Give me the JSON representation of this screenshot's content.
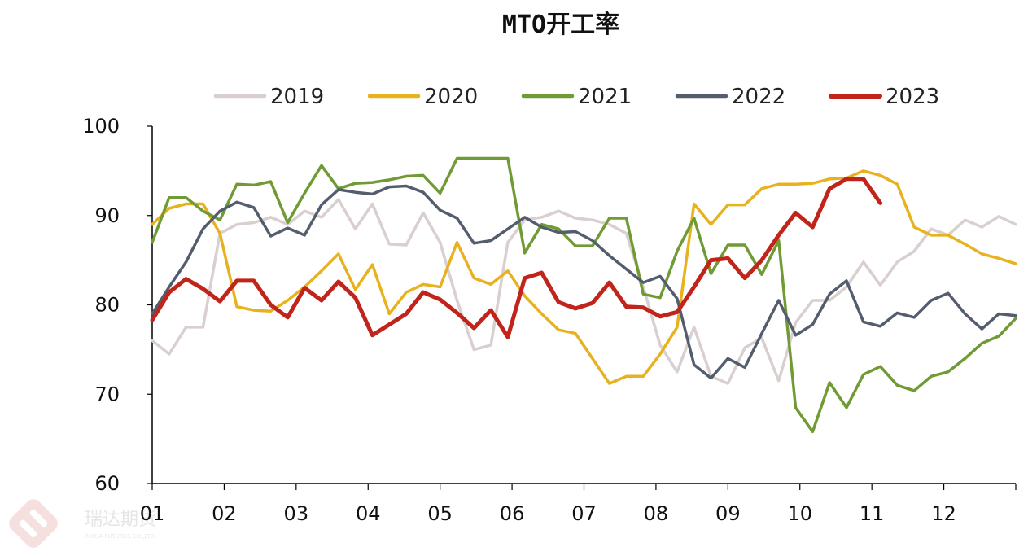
{
  "chart_data": {
    "type": "line",
    "title": "MTO开工率",
    "xlabel": "",
    "ylabel": "",
    "ylim": [
      60,
      100
    ],
    "yticks": [
      60,
      70,
      80,
      90,
      100
    ],
    "grid": false,
    "legend_position": "top",
    "x_tick_labels": [
      "01",
      "02",
      "03",
      "04",
      "05",
      "06",
      "07",
      "08",
      "09",
      "10",
      "11",
      "12"
    ],
    "weeks_per_year": 52,
    "series": [
      {
        "name": "2019",
        "color": "#d9cfcf",
        "values": [
          76,
          74.5,
          77.5,
          77.5,
          88,
          89,
          89.2,
          89.8,
          89,
          90.5,
          89.8,
          91.8,
          88.5,
          91.3,
          86.8,
          86.7,
          90.3,
          87,
          80.5,
          75,
          75.5,
          87,
          89.5,
          89.8,
          90.5,
          89.7,
          89.5,
          89,
          88,
          82,
          75.5,
          72.5,
          77.5,
          72,
          71.2,
          75.2,
          76.3,
          71.5,
          78,
          80.5,
          80.5,
          82,
          84.8,
          82.2,
          84.8,
          86,
          88.5,
          87.8,
          89.5,
          88.7,
          89.9,
          89
        ]
      },
      {
        "name": "2020",
        "color": "#e8b21f",
        "values": [
          89,
          90.8,
          91.3,
          91.3,
          88,
          79.8,
          79.4,
          79.3,
          80.5,
          82,
          83.8,
          85.7,
          81.7,
          84.5,
          79,
          81.4,
          82.3,
          82,
          87,
          83,
          82.3,
          83.8,
          81,
          79,
          77.2,
          76.8,
          74,
          71.2,
          72,
          72,
          74.5,
          77.5,
          91.3,
          89,
          91.2,
          91.2,
          93,
          93.5,
          93.5,
          93.6,
          94.1,
          94.2,
          95,
          94.5,
          93.5,
          88.7,
          87.8,
          87.8,
          86.8,
          85.7,
          85.2,
          84.6
        ]
      },
      {
        "name": "2021",
        "color": "#6f9a34",
        "values": [
          87,
          92,
          92,
          90.5,
          89.5,
          93.5,
          93.4,
          93.8,
          89.2,
          92.5,
          95.6,
          93,
          93.6,
          93.7,
          94,
          94.4,
          94.5,
          92.5,
          96.4,
          96.4,
          96.4,
          96.4,
          85.8,
          89,
          88.5,
          86.6,
          86.6,
          89.7,
          89.7,
          81.2,
          80.8,
          86,
          89.7,
          83.5,
          86.7,
          86.7,
          83.4,
          87.2,
          68.5,
          65.8,
          71.3,
          68.5,
          72.2,
          73.1,
          71,
          70.4,
          72,
          72.5,
          74,
          75.7,
          76.5,
          78.5
        ]
      },
      {
        "name": "2022",
        "color": "#535d6e",
        "values": [
          79,
          82,
          84.8,
          88.5,
          90.5,
          91.5,
          90.9,
          87.7,
          88.6,
          87.8,
          91.2,
          92.9,
          92.6,
          92.4,
          93.2,
          93.3,
          92.6,
          90.6,
          89.7,
          86.9,
          87.2,
          88.5,
          89.8,
          88.7,
          88.1,
          88.2,
          87.2,
          85.5,
          84,
          82.5,
          83.2,
          80.7,
          73.3,
          71.8,
          74,
          73,
          76.8,
          80.5,
          76.6,
          77.8,
          81.2,
          82.7,
          78.1,
          77.6,
          79.1,
          78.6,
          80.5,
          81.3,
          79,
          77.3,
          79,
          78.8
        ]
      },
      {
        "name": "2023",
        "color": "#c0241a",
        "values": [
          78.3,
          81.4,
          82.9,
          81.8,
          80.4,
          82.7,
          82.7,
          80,
          78.6,
          81.9,
          80.5,
          82.6,
          80.8,
          76.6,
          77.8,
          79,
          81.4,
          80.6,
          79.1,
          77.4,
          79.4,
          76.4,
          83,
          83.6,
          80.3,
          79.6,
          80.2,
          82.5,
          79.8,
          79.7,
          78.7,
          79.2,
          82,
          85,
          85.2,
          83,
          85,
          87.8,
          90.3,
          88.7,
          93,
          94.1,
          94.1,
          91.4
        ]
      }
    ]
  },
  "watermark": {
    "brand": "瑞达期货",
    "sub": "RUIDA FUTURES CO.,LTD."
  }
}
